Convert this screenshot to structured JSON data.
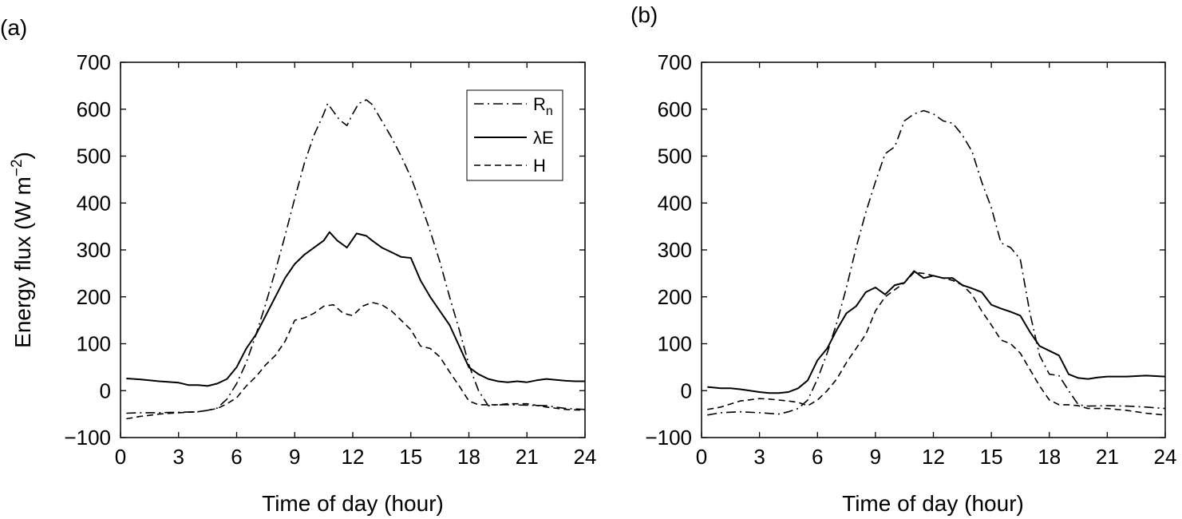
{
  "chart_data": [
    {
      "type": "line",
      "panel_label": "(a)",
      "xlabel": "Time of day (hour)",
      "ylabel": "Energy flux (W m",
      "ylabel_sup": "−2",
      "ylabel_close": ")",
      "xlim": [
        0,
        24
      ],
      "ylim": [
        -100,
        700
      ],
      "xticks": [
        "0",
        "3",
        "6",
        "9",
        "12",
        "15",
        "18",
        "21",
        "24"
      ],
      "yticks": [
        "700",
        "600",
        "500",
        "400",
        "300",
        "200",
        "100",
        "0",
        "−100"
      ],
      "legend": {
        "position": "top-right"
      },
      "series": [
        {
          "name": "R",
          "name_sub": "n",
          "style": "dash-dot",
          "x": [
            0.3,
            1,
            2,
            3,
            4,
            4.5,
            5,
            5.5,
            6,
            6.5,
            7,
            7.5,
            8,
            8.5,
            9,
            9.5,
            10,
            10.5,
            10.7,
            11,
            11.3,
            11.7,
            12,
            12.3,
            12.7,
            13,
            13.5,
            14,
            14.5,
            15,
            15.5,
            16,
            16.5,
            17,
            17.5,
            18,
            18.5,
            19,
            19.5,
            20,
            21,
            22,
            23,
            24
          ],
          "y": [
            -48,
            -47,
            -47,
            -46,
            -45,
            -42,
            -37,
            -18,
            15,
            60,
            120,
            185,
            255,
            330,
            410,
            485,
            545,
            590,
            612,
            595,
            578,
            565,
            590,
            612,
            620,
            610,
            575,
            540,
            500,
            455,
            400,
            340,
            275,
            200,
            130,
            55,
            0,
            -32,
            -30,
            -30,
            -31,
            -32,
            -38,
            -40
          ]
        },
        {
          "name": "λE",
          "style": "solid",
          "x": [
            0.3,
            1,
            2,
            3,
            3.5,
            4,
            4.5,
            5,
            5.5,
            6,
            6.5,
            7,
            7.5,
            8,
            8.5,
            9,
            9.5,
            10,
            10.5,
            10.8,
            11.2,
            11.7,
            12.2,
            12.7,
            13,
            13.5,
            14,
            14.5,
            15,
            15.5,
            16,
            16.5,
            17,
            17.5,
            18,
            18.5,
            19,
            19.5,
            20,
            20.5,
            21,
            21.5,
            22,
            22.5,
            23,
            23.5,
            24
          ],
          "y": [
            26,
            24,
            20,
            17,
            12,
            12,
            10,
            15,
            25,
            50,
            90,
            120,
            160,
            200,
            240,
            270,
            290,
            305,
            320,
            338,
            320,
            305,
            335,
            330,
            320,
            305,
            295,
            285,
            283,
            235,
            200,
            170,
            140,
            95,
            50,
            35,
            25,
            20,
            18,
            20,
            18,
            22,
            25,
            23,
            21,
            20,
            20
          ]
        },
        {
          "name": "H",
          "style": "dashed",
          "x": [
            0.3,
            1,
            2,
            3,
            4,
            4.5,
            5,
            5.5,
            6,
            6.5,
            7,
            7.5,
            8,
            8.5,
            9,
            9.5,
            10,
            10.5,
            11,
            11.5,
            12,
            12.5,
            13,
            13.5,
            14,
            14.5,
            15,
            15.5,
            16,
            16.5,
            17,
            17.5,
            18,
            18.5,
            19,
            19.5,
            20,
            21,
            22,
            23,
            24
          ],
          "y": [
            -60,
            -55,
            -50,
            -47,
            -45,
            -42,
            -38,
            -28,
            -15,
            10,
            30,
            55,
            75,
            105,
            150,
            155,
            165,
            180,
            183,
            165,
            160,
            180,
            188,
            183,
            170,
            150,
            130,
            95,
            90,
            72,
            40,
            10,
            -22,
            -30,
            -30,
            -30,
            -28,
            -28,
            -35,
            -40,
            -42
          ]
        }
      ]
    },
    {
      "type": "line",
      "panel_label": "(b)",
      "xlabel": "Time of day (hour)",
      "xlim": [
        0,
        24
      ],
      "ylim": [
        -100,
        700
      ],
      "xticks": [
        "0",
        "3",
        "6",
        "9",
        "12",
        "15",
        "18",
        "21",
        "24"
      ],
      "yticks": [
        "700",
        "600",
        "500",
        "400",
        "300",
        "200",
        "100",
        "0",
        "−100"
      ],
      "series": [
        {
          "name": "R",
          "name_sub": "n",
          "style": "dash-dot",
          "x": [
            0.3,
            1,
            2,
            3,
            4,
            4.5,
            5,
            5.5,
            6,
            6.5,
            7,
            7.5,
            8,
            8.5,
            9,
            9.5,
            10,
            10.5,
            11,
            11.5,
            12,
            12.5,
            13,
            13.5,
            14,
            14.5,
            15,
            15.5,
            16,
            16.5,
            17,
            17.5,
            18,
            18.5,
            19,
            19.5,
            20,
            21,
            22,
            23,
            24
          ],
          "y": [
            -52,
            -47,
            -45,
            -47,
            -50,
            -45,
            -38,
            -20,
            25,
            80,
            145,
            220,
            305,
            380,
            445,
            505,
            520,
            575,
            590,
            597,
            590,
            575,
            570,
            545,
            510,
            445,
            390,
            315,
            305,
            280,
            165,
            75,
            35,
            32,
            0,
            -30,
            -33,
            -32,
            -33,
            -35,
            -38
          ]
        },
        {
          "name": "λE",
          "style": "solid",
          "x": [
            0.3,
            1,
            1.5,
            2,
            2.5,
            3,
            3.5,
            4,
            4.5,
            5,
            5.5,
            6,
            6.5,
            7,
            7.5,
            8,
            8.5,
            9,
            9.5,
            10,
            10.5,
            11,
            11.5,
            12,
            12.5,
            13,
            13.5,
            14,
            14.5,
            15,
            15.5,
            16,
            16.5,
            17,
            17.5,
            18,
            18.5,
            19,
            19.5,
            20,
            20.5,
            21,
            22,
            23,
            24
          ],
          "y": [
            8,
            5,
            5,
            3,
            0,
            -3,
            -5,
            -5,
            -3,
            5,
            22,
            65,
            90,
            130,
            165,
            180,
            210,
            220,
            205,
            225,
            230,
            255,
            240,
            245,
            240,
            240,
            225,
            218,
            210,
            183,
            175,
            168,
            160,
            125,
            95,
            85,
            75,
            35,
            27,
            25,
            28,
            30,
            30,
            32,
            30
          ]
        },
        {
          "name": "H",
          "style": "dashed",
          "x": [
            0.3,
            1,
            2,
            3,
            3.5,
            4,
            4.5,
            5,
            5.5,
            6,
            6.5,
            7,
            7.5,
            8,
            8.5,
            9,
            9.5,
            10,
            10.5,
            11,
            11.5,
            12,
            12.5,
            13,
            13.5,
            14,
            14.5,
            15,
            15.5,
            16,
            16.5,
            17,
            17.5,
            18,
            18.5,
            19,
            19.5,
            20,
            21,
            22,
            23,
            24
          ],
          "y": [
            -40,
            -35,
            -22,
            -17,
            -18,
            -20,
            -22,
            -25,
            -32,
            -20,
            0,
            25,
            60,
            90,
            120,
            170,
            200,
            215,
            230,
            252,
            250,
            245,
            240,
            235,
            225,
            205,
            170,
            140,
            108,
            100,
            80,
            45,
            10,
            -20,
            -30,
            -30,
            -32,
            -38,
            -38,
            -42,
            -48,
            -52
          ]
        }
      ]
    }
  ]
}
